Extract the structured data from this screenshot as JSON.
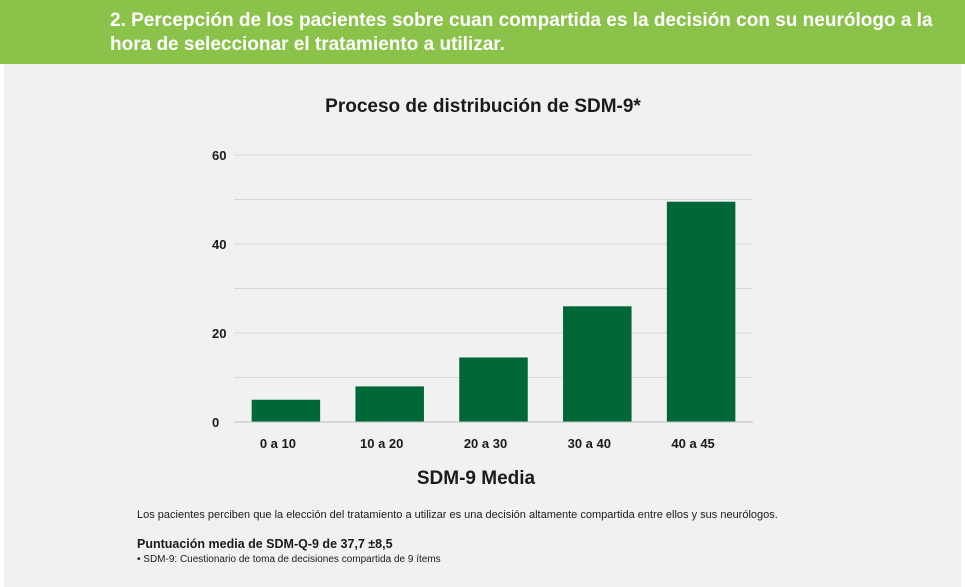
{
  "header": {
    "title": "2. Percepción de los pacientes sobre cuan compartida es la decisión con su neurólogo a la hora de seleccionar el tratamiento a utilizar."
  },
  "chart_data": {
    "type": "bar",
    "title": "Proceso de distribución de SDM-9*",
    "xlabel": "SDM-9 Media",
    "ylabel": "",
    "categories": [
      "0 a 10",
      "10 a 20",
      "20 a 30",
      "30 a 40",
      "40 a 45"
    ],
    "values": [
      5,
      8,
      14.5,
      26,
      49.5
    ],
    "ylim": [
      0,
      60
    ],
    "yticks": [
      0,
      20,
      40,
      60
    ],
    "grid": true,
    "bar_color": "#006837"
  },
  "caption": "Los pacientes perciben que la elección del tratamiento a utilizar es una decisión altamente compartida entre ellos y sus neurólogos.",
  "score": "Puntuación media de SDM-Q-9 de 37,7 ±8,5",
  "footnote": "• SDM-9: Cuestionario de toma de decisiones compartida de 9 ítems",
  "colors": {
    "header_band": "#8bc34a",
    "panel": "#f2f1f1",
    "bars": "#006837"
  }
}
